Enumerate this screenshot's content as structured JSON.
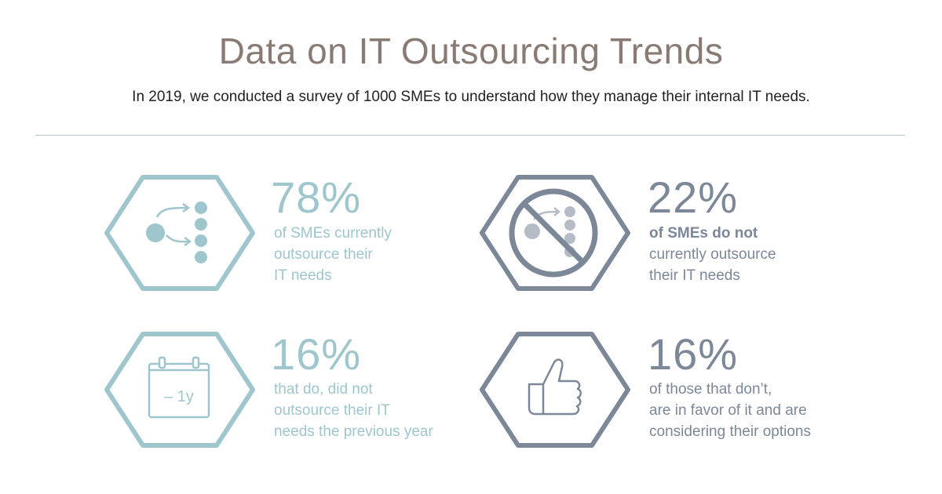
{
  "header": {
    "title": "Data on IT Outsourcing Trends",
    "subtitle": "In 2019, we conducted a survey of 1000 SMEs to understand how they manage their internal IT needs."
  },
  "colors": {
    "title": "#8a7a74",
    "teal": "#9ec6cc",
    "slate": "#7c8797",
    "divider": "#b9c9cd"
  },
  "stats": [
    {
      "value": "78%",
      "lines": [
        "of SMEs currently",
        "outsource their",
        "IT needs"
      ],
      "icon": "outsourcing-flow-icon"
    },
    {
      "value": "22%",
      "bold_line": "of SMEs do not",
      "lines": [
        "currently outsource",
        "their IT needs"
      ],
      "icon": "no-outsourcing-icon"
    },
    {
      "value": "16%",
      "lines": [
        "that do, did not",
        "outsource their IT",
        "needs the previous year"
      ],
      "icon": "calendar-icon",
      "icon_label": "– 1y"
    },
    {
      "value": "16%",
      "lines": [
        "of those that don’t,",
        "are in favor of it and are",
        "considering their options"
      ],
      "icon": "thumbs-up-icon"
    }
  ]
}
